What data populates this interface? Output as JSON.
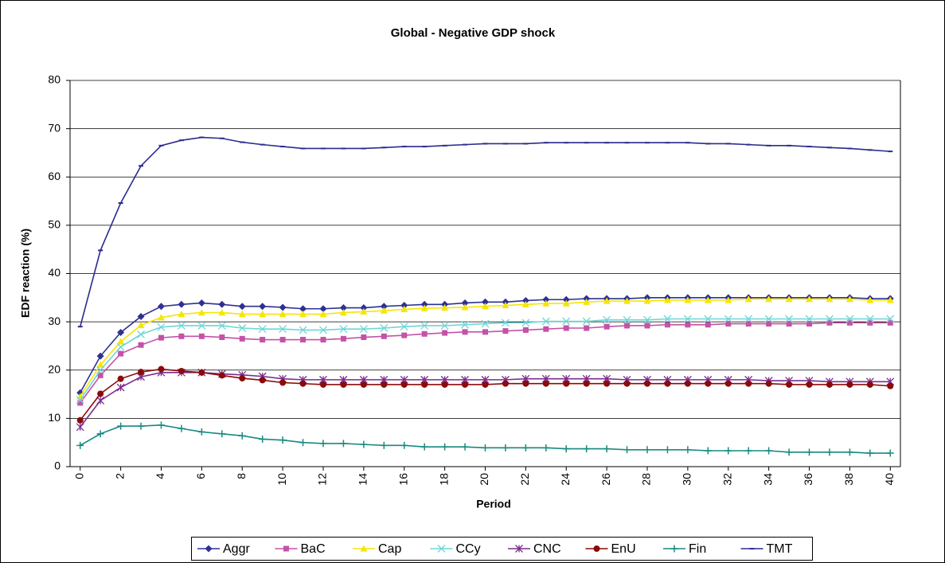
{
  "chart_data": {
    "type": "line",
    "title": "Global - Negative GDP shock",
    "y_label": "EDF reaction (%)",
    "x_label": "Period",
    "x": [
      0,
      1,
      2,
      3,
      4,
      5,
      6,
      7,
      8,
      9,
      10,
      11,
      12,
      13,
      14,
      15,
      16,
      17,
      18,
      19,
      20,
      21,
      22,
      23,
      24,
      25,
      26,
      27,
      28,
      29,
      30,
      31,
      32,
      33,
      34,
      35,
      36,
      37,
      38,
      39,
      40
    ],
    "xlim": [
      -0.5,
      40.5
    ],
    "xticks": [
      0,
      2,
      4,
      6,
      8,
      10,
      12,
      14,
      16,
      18,
      20,
      22,
      24,
      26,
      28,
      30,
      32,
      34,
      36,
      38,
      40
    ],
    "ylim": [
      0,
      80
    ],
    "yticks": [
      0,
      10,
      20,
      30,
      40,
      50,
      60,
      70,
      80
    ],
    "grid": true,
    "legend": "bottom",
    "series": [
      {
        "name": "Aggr",
        "color": "#2e3192",
        "marker": "diamond",
        "values": [
          15.3,
          22.9,
          27.8,
          31.1,
          33.2,
          33.6,
          33.9,
          33.6,
          33.2,
          33.2,
          33.0,
          32.7,
          32.7,
          32.9,
          32.9,
          33.2,
          33.4,
          33.6,
          33.6,
          33.9,
          34.1,
          34.1,
          34.4,
          34.6,
          34.6,
          34.8,
          34.8,
          34.8,
          35.0,
          35.0,
          35.0,
          35.0,
          35.0,
          35.0,
          35.0,
          35.0,
          35.0,
          35.0,
          35.0,
          34.8,
          34.8
        ]
      },
      {
        "name": "BaC",
        "color": "#c452a8",
        "marker": "square",
        "values": [
          13.2,
          18.9,
          23.4,
          25.2,
          26.7,
          27.0,
          27.0,
          26.8,
          26.5,
          26.3,
          26.3,
          26.3,
          26.3,
          26.5,
          26.8,
          27.0,
          27.2,
          27.5,
          27.7,
          27.9,
          27.9,
          28.1,
          28.3,
          28.5,
          28.7,
          28.7,
          29.0,
          29.2,
          29.2,
          29.4,
          29.4,
          29.4,
          29.6,
          29.6,
          29.6,
          29.6,
          29.6,
          29.8,
          29.8,
          29.8,
          29.8
        ]
      },
      {
        "name": "Cap",
        "color": "#f5e600",
        "marker": "triangle",
        "values": [
          14.5,
          21.1,
          25.9,
          29.3,
          30.9,
          31.6,
          31.9,
          31.9,
          31.6,
          31.6,
          31.6,
          31.6,
          31.6,
          31.9,
          32.1,
          32.3,
          32.6,
          32.8,
          32.9,
          33.0,
          33.2,
          33.4,
          33.6,
          33.8,
          33.8,
          34.1,
          34.3,
          34.3,
          34.3,
          34.5,
          34.5,
          34.5,
          34.5,
          34.7,
          34.7,
          34.7,
          34.7,
          34.7,
          34.7,
          34.5,
          34.5
        ]
      },
      {
        "name": "CCy",
        "color": "#6fd6d6",
        "marker": "x",
        "values": [
          13.8,
          20.0,
          24.8,
          27.4,
          28.9,
          29.2,
          29.2,
          29.2,
          28.7,
          28.5,
          28.5,
          28.3,
          28.3,
          28.5,
          28.5,
          28.7,
          29.0,
          29.2,
          29.2,
          29.4,
          29.6,
          29.8,
          29.8,
          30.1,
          30.1,
          30.1,
          30.4,
          30.4,
          30.4,
          30.6,
          30.6,
          30.6,
          30.6,
          30.6,
          30.6,
          30.6,
          30.6,
          30.6,
          30.6,
          30.6,
          30.6
        ]
      },
      {
        "name": "CNC",
        "color": "#7b2d8e",
        "marker": "star",
        "values": [
          8.2,
          13.7,
          16.4,
          18.6,
          19.5,
          19.5,
          19.5,
          19.2,
          19.0,
          18.7,
          18.2,
          18.0,
          18.0,
          18.0,
          18.0,
          18.0,
          18.0,
          18.0,
          18.0,
          18.0,
          18.0,
          18.0,
          18.2,
          18.2,
          18.2,
          18.2,
          18.2,
          18.0,
          18.0,
          18.0,
          18.0,
          18.0,
          18.0,
          18.0,
          17.8,
          17.8,
          17.8,
          17.6,
          17.6,
          17.6,
          17.6
        ]
      },
      {
        "name": "EnU",
        "color": "#8b0a0a",
        "marker": "circle",
        "values": [
          9.6,
          15.1,
          18.2,
          19.6,
          20.2,
          19.8,
          19.5,
          18.9,
          18.3,
          17.9,
          17.4,
          17.2,
          17.0,
          17.0,
          17.0,
          17.0,
          17.0,
          17.0,
          17.0,
          17.0,
          17.0,
          17.2,
          17.2,
          17.2,
          17.2,
          17.2,
          17.2,
          17.2,
          17.2,
          17.2,
          17.2,
          17.2,
          17.2,
          17.2,
          17.2,
          17.0,
          17.0,
          17.0,
          17.0,
          17.0,
          16.7
        ]
      },
      {
        "name": "Fin",
        "color": "#188a80",
        "marker": "plus",
        "values": [
          4.4,
          6.8,
          8.4,
          8.4,
          8.6,
          7.9,
          7.2,
          6.8,
          6.4,
          5.7,
          5.5,
          5.0,
          4.8,
          4.8,
          4.6,
          4.4,
          4.4,
          4.1,
          4.1,
          4.1,
          3.9,
          3.9,
          3.9,
          3.9,
          3.7,
          3.7,
          3.7,
          3.5,
          3.5,
          3.5,
          3.5,
          3.3,
          3.3,
          3.3,
          3.3,
          3.0,
          3.0,
          3.0,
          3.0,
          2.8,
          2.8
        ]
      },
      {
        "name": "TMT",
        "color": "#2b2b8f",
        "marker": "dash",
        "values": [
          29.0,
          44.8,
          54.6,
          62.3,
          66.5,
          67.6,
          68.2,
          68.0,
          67.2,
          66.7,
          66.3,
          65.9,
          65.9,
          65.9,
          65.9,
          66.1,
          66.3,
          66.3,
          66.5,
          66.7,
          66.9,
          66.9,
          66.9,
          67.1,
          67.1,
          67.1,
          67.1,
          67.1,
          67.1,
          67.1,
          67.1,
          66.9,
          66.9,
          66.7,
          66.5,
          66.5,
          66.3,
          66.1,
          65.9,
          65.6,
          65.3
        ]
      }
    ]
  }
}
